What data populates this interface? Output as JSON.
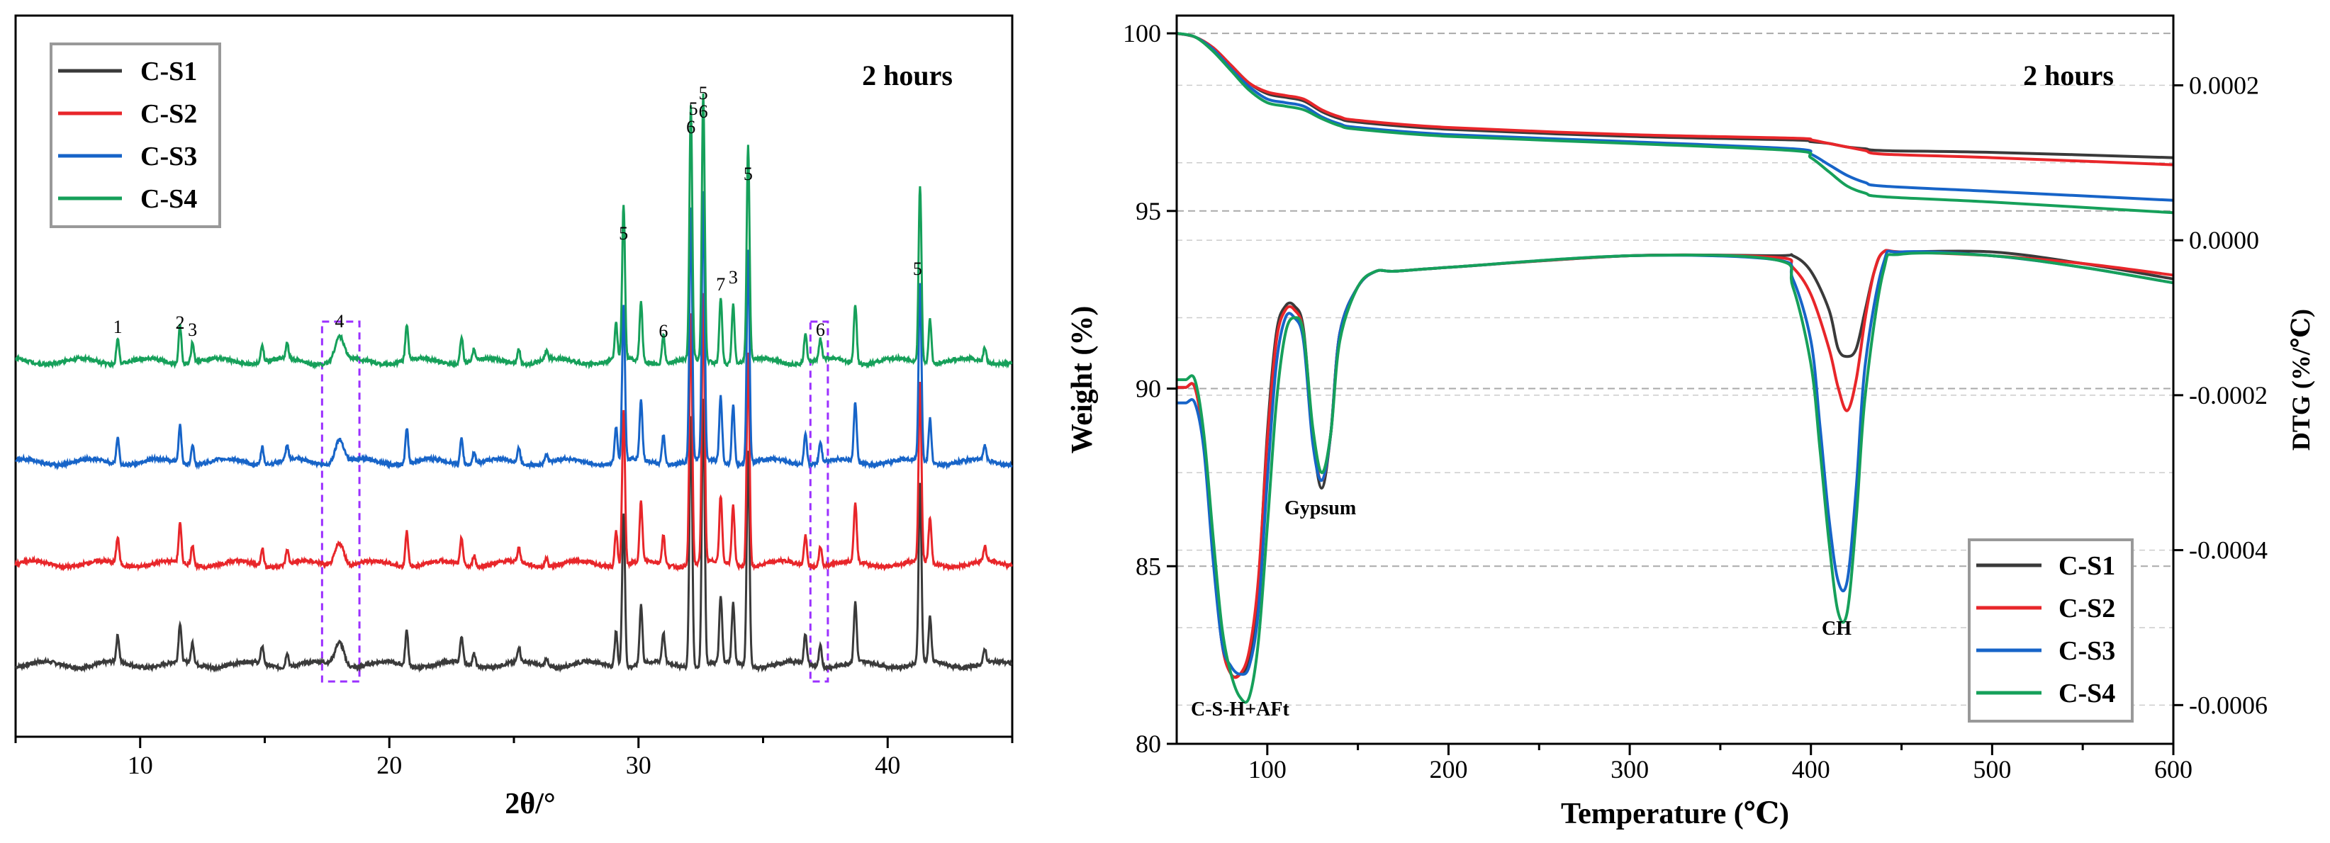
{
  "chart_data": [
    {
      "type": "line",
      "title": "2 hours",
      "xlabel": "2θ/°",
      "ylabel": "",
      "xlim": [
        5,
        45
      ],
      "xticks": [
        "10",
        "20",
        "30",
        "40"
      ],
      "legend": {
        "placement": "top-left",
        "entries": [
          "C-S1",
          "C-S2",
          "C-S3",
          "C-S4"
        ]
      },
      "series": [
        {
          "name": "C-S1",
          "color": "#3a3a3a"
        },
        {
          "name": "C-S2",
          "color": "#e8262a"
        },
        {
          "name": "C-S3",
          "color": "#1764c8"
        },
        {
          "name": "C-S4",
          "color": "#16a05a"
        }
      ],
      "peak_labels": [
        {
          "text": "1",
          "x": 9.1
        },
        {
          "text": "2",
          "x": 11.6
        },
        {
          "text": "3",
          "x": 12.1
        },
        {
          "text": "4",
          "x": 18.0
        },
        {
          "text": "5",
          "x": 29.4
        },
        {
          "text": "6",
          "x": 31.0
        },
        {
          "text": "6",
          "x": 32.1
        },
        {
          "text": "5",
          "x": 32.2
        },
        {
          "text": "5",
          "x": 32.6
        },
        {
          "text": "6",
          "x": 32.6
        },
        {
          "text": "7",
          "x": 33.3
        },
        {
          "text": "3",
          "x": 33.8
        },
        {
          "text": "5",
          "x": 34.4
        },
        {
          "text": "6",
          "x": 37.3
        },
        {
          "text": "5",
          "x": 41.2
        }
      ],
      "highlight_boxes": [
        {
          "x_range": [
            17.3,
            18.8
          ]
        },
        {
          "x_range": [
            36.9,
            37.6
          ]
        }
      ],
      "peaks": [
        {
          "x": 9.1,
          "h": 0.09
        },
        {
          "x": 11.6,
          "h": 0.13
        },
        {
          "x": 12.1,
          "h": 0.07
        },
        {
          "x": 14.9,
          "h": 0.06
        },
        {
          "x": 15.9,
          "h": 0.05
        },
        {
          "x": 18.0,
          "h": 0.08,
          "w": 0.25
        },
        {
          "x": 20.7,
          "h": 0.12
        },
        {
          "x": 22.9,
          "h": 0.09
        },
        {
          "x": 23.4,
          "h": 0.04
        },
        {
          "x": 25.2,
          "h": 0.05
        },
        {
          "x": 26.3,
          "h": 0.03
        },
        {
          "x": 29.1,
          "h": 0.12
        },
        {
          "x": 29.4,
          "h": 0.52
        },
        {
          "x": 30.1,
          "h": 0.2
        },
        {
          "x": 31.0,
          "h": 0.1
        },
        {
          "x": 32.1,
          "h": 0.85
        },
        {
          "x": 32.6,
          "h": 0.9
        },
        {
          "x": 33.3,
          "h": 0.22
        },
        {
          "x": 33.8,
          "h": 0.2
        },
        {
          "x": 34.4,
          "h": 0.72
        },
        {
          "x": 36.7,
          "h": 0.1
        },
        {
          "x": 37.3,
          "h": 0.07
        },
        {
          "x": 38.7,
          "h": 0.2
        },
        {
          "x": 41.3,
          "h": 0.6
        },
        {
          "x": 41.7,
          "h": 0.15
        },
        {
          "x": 43.9,
          "h": 0.05
        }
      ],
      "series_peak_scale": [
        1.0,
        1.0,
        1.0,
        1.0
      ]
    },
    {
      "type": "line",
      "title": "2 hours",
      "xlabel": "Temperature (℃)",
      "ylabel": "Weight (%)",
      "y2label": "DTG (%/℃)",
      "xlim": [
        50,
        600
      ],
      "ylim": [
        80,
        100.5
      ],
      "y2lim": [
        -0.00065,
        0.00029
      ],
      "xticks": [
        "100",
        "200",
        "300",
        "400",
        "500",
        "600"
      ],
      "yticks": [
        "80",
        "85",
        "90",
        "95",
        "100"
      ],
      "y2ticks": [
        "0.0002",
        "0.0000",
        "-0.0002",
        "-0.0004",
        "-0.0006"
      ],
      "legend": {
        "placement": "bottom-right",
        "entries": [
          "C-S1",
          "C-S2",
          "C-S3",
          "C-S4"
        ]
      },
      "annotations": [
        "Gypsum",
        "C-S-H+AFt",
        "CH"
      ],
      "tg_series": [
        {
          "name": "C-S1",
          "x": [
            50,
            60,
            70,
            80,
            90,
            100,
            110,
            120,
            130,
            140,
            150,
            200,
            300,
            390,
            400,
            410,
            420,
            430,
            440,
            500,
            600
          ],
          "y": [
            100,
            99.9,
            99.6,
            99.1,
            98.6,
            98.3,
            98.2,
            98.1,
            97.8,
            97.6,
            97.5,
            97.3,
            97.1,
            97.0,
            96.95,
            96.9,
            96.8,
            96.75,
            96.7,
            96.65,
            96.5
          ]
        },
        {
          "name": "C-S2",
          "x": [
            50,
            60,
            70,
            80,
            90,
            100,
            110,
            120,
            130,
            140,
            150,
            200,
            300,
            390,
            400,
            410,
            420,
            430,
            440,
            500,
            600
          ],
          "y": [
            100,
            99.9,
            99.6,
            99.1,
            98.6,
            98.35,
            98.25,
            98.15,
            97.85,
            97.65,
            97.55,
            97.35,
            97.15,
            97.05,
            97.0,
            96.9,
            96.8,
            96.7,
            96.6,
            96.5,
            96.3
          ]
        },
        {
          "name": "C-S3",
          "x": [
            50,
            60,
            70,
            80,
            90,
            100,
            110,
            120,
            130,
            140,
            150,
            200,
            300,
            390,
            400,
            410,
            420,
            430,
            440,
            500,
            600
          ],
          "y": [
            100,
            99.9,
            99.55,
            99.0,
            98.5,
            98.15,
            98.05,
            97.95,
            97.65,
            97.45,
            97.35,
            97.15,
            96.95,
            96.75,
            96.6,
            96.3,
            96.0,
            95.8,
            95.7,
            95.55,
            95.3
          ]
        },
        {
          "name": "C-S4",
          "x": [
            50,
            60,
            70,
            80,
            90,
            100,
            110,
            120,
            130,
            140,
            150,
            200,
            300,
            390,
            400,
            410,
            420,
            430,
            440,
            500,
            600
          ],
          "y": [
            100,
            99.9,
            99.5,
            98.95,
            98.4,
            98.05,
            97.95,
            97.85,
            97.6,
            97.4,
            97.3,
            97.1,
            96.9,
            96.7,
            96.5,
            96.1,
            95.7,
            95.5,
            95.4,
            95.25,
            94.95
          ]
        }
      ],
      "dtg_series": [
        {
          "name": "C-S1",
          "x": [
            50,
            55,
            60,
            65,
            70,
            75,
            80,
            85,
            90,
            95,
            100,
            105,
            110,
            115,
            120,
            125,
            130,
            135,
            140,
            150,
            160,
            170,
            200,
            300,
            380,
            390,
            400,
            410,
            415,
            420,
            425,
            430,
            435,
            440,
            450,
            500,
            550,
            600
          ],
          "y": [
            -0.00019,
            -0.00019,
            -0.00019,
            -0.00026,
            -0.0004,
            -0.00052,
            -0.00056,
            -0.00056,
            -0.00054,
            -0.00045,
            -0.00025,
            -0.00012,
            -8.5e-05,
            -8.5e-05,
            -0.000115,
            -0.00025,
            -0.00032,
            -0.00025,
            -0.00012,
            -6e-05,
            -4e-05,
            -4e-05,
            -3.5e-05,
            -2e-05,
            -2e-05,
            -2e-05,
            -4e-05,
            -9e-05,
            -0.00014,
            -0.00015,
            -0.00014,
            -9e-05,
            -4e-05,
            -1.5e-05,
            -1.5e-05,
            -1.5e-05,
            -3e-05,
            -5e-05
          ]
        },
        {
          "name": "C-S2",
          "x": [
            50,
            55,
            60,
            65,
            70,
            75,
            80,
            85,
            90,
            95,
            100,
            105,
            110,
            115,
            120,
            125,
            130,
            135,
            140,
            150,
            160,
            170,
            200,
            300,
            380,
            390,
            400,
            410,
            415,
            420,
            425,
            430,
            435,
            440,
            450,
            500,
            550,
            600
          ],
          "y": [
            -0.00019,
            -0.00019,
            -0.00019,
            -0.00026,
            -0.0004,
            -0.00052,
            -0.00056,
            -0.00056,
            -0.00053,
            -0.00044,
            -0.00026,
            -0.00013,
            -9e-05,
            -9e-05,
            -0.00012,
            -0.00025,
            -0.00031,
            -0.00025,
            -0.00012,
            -6e-05,
            -4e-05,
            -4e-05,
            -3.5e-05,
            -2e-05,
            -2.2e-05,
            -3.5e-05,
            -7e-05,
            -0.00014,
            -0.00019,
            -0.00022,
            -0.00018,
            -0.0001,
            -4e-05,
            -1.5e-05,
            -1.5e-05,
            -2e-05,
            -3e-05,
            -4.5e-05
          ]
        },
        {
          "name": "C-S3",
          "x": [
            50,
            55,
            60,
            65,
            70,
            75,
            80,
            85,
            90,
            95,
            100,
            105,
            110,
            115,
            120,
            125,
            130,
            135,
            140,
            150,
            160,
            170,
            200,
            300,
            380,
            390,
            400,
            405,
            410,
            415,
            420,
            425,
            430,
            440,
            450,
            500,
            550,
            600
          ],
          "y": [
            -0.00021,
            -0.00021,
            -0.00021,
            -0.00027,
            -0.00041,
            -0.00052,
            -0.00055,
            -0.00056,
            -0.00055,
            -0.00048,
            -0.00031,
            -0.00016,
            -0.0001,
            -0.0001,
            -0.00013,
            -0.00026,
            -0.00031,
            -0.00025,
            -0.00012,
            -6e-05,
            -4e-05,
            -4e-05,
            -3.5e-05,
            -2e-05,
            -2.5e-05,
            -5e-05,
            -0.00013,
            -0.00024,
            -0.00036,
            -0.00044,
            -0.00044,
            -0.00032,
            -0.00016,
            -3e-05,
            -1.5e-05,
            -2e-05,
            -3.5e-05,
            -5.5e-05
          ]
        },
        {
          "name": "C-S4",
          "x": [
            50,
            55,
            60,
            65,
            70,
            75,
            80,
            85,
            90,
            95,
            100,
            105,
            110,
            115,
            120,
            125,
            130,
            135,
            140,
            150,
            160,
            170,
            200,
            300,
            380,
            390,
            400,
            405,
            410,
            415,
            420,
            425,
            430,
            440,
            450,
            500,
            550,
            600
          ],
          "y": [
            -0.00018,
            -0.00018,
            -0.00018,
            -0.00025,
            -0.00038,
            -0.0005,
            -0.00056,
            -0.00059,
            -0.00059,
            -0.00052,
            -0.00037,
            -0.00021,
            -0.00012,
            -0.0001,
            -0.00012,
            -0.00024,
            -0.0003,
            -0.00025,
            -0.00013,
            -6e-05,
            -4e-05,
            -4e-05,
            -3.5e-05,
            -2e-05,
            -2.5e-05,
            -6e-05,
            -0.00016,
            -0.00027,
            -0.00039,
            -0.00048,
            -0.00048,
            -0.00036,
            -0.0002,
            -4e-05,
            -1.8e-05,
            -2e-05,
            -3.5e-05,
            -5.5e-05
          ]
        }
      ]
    }
  ]
}
